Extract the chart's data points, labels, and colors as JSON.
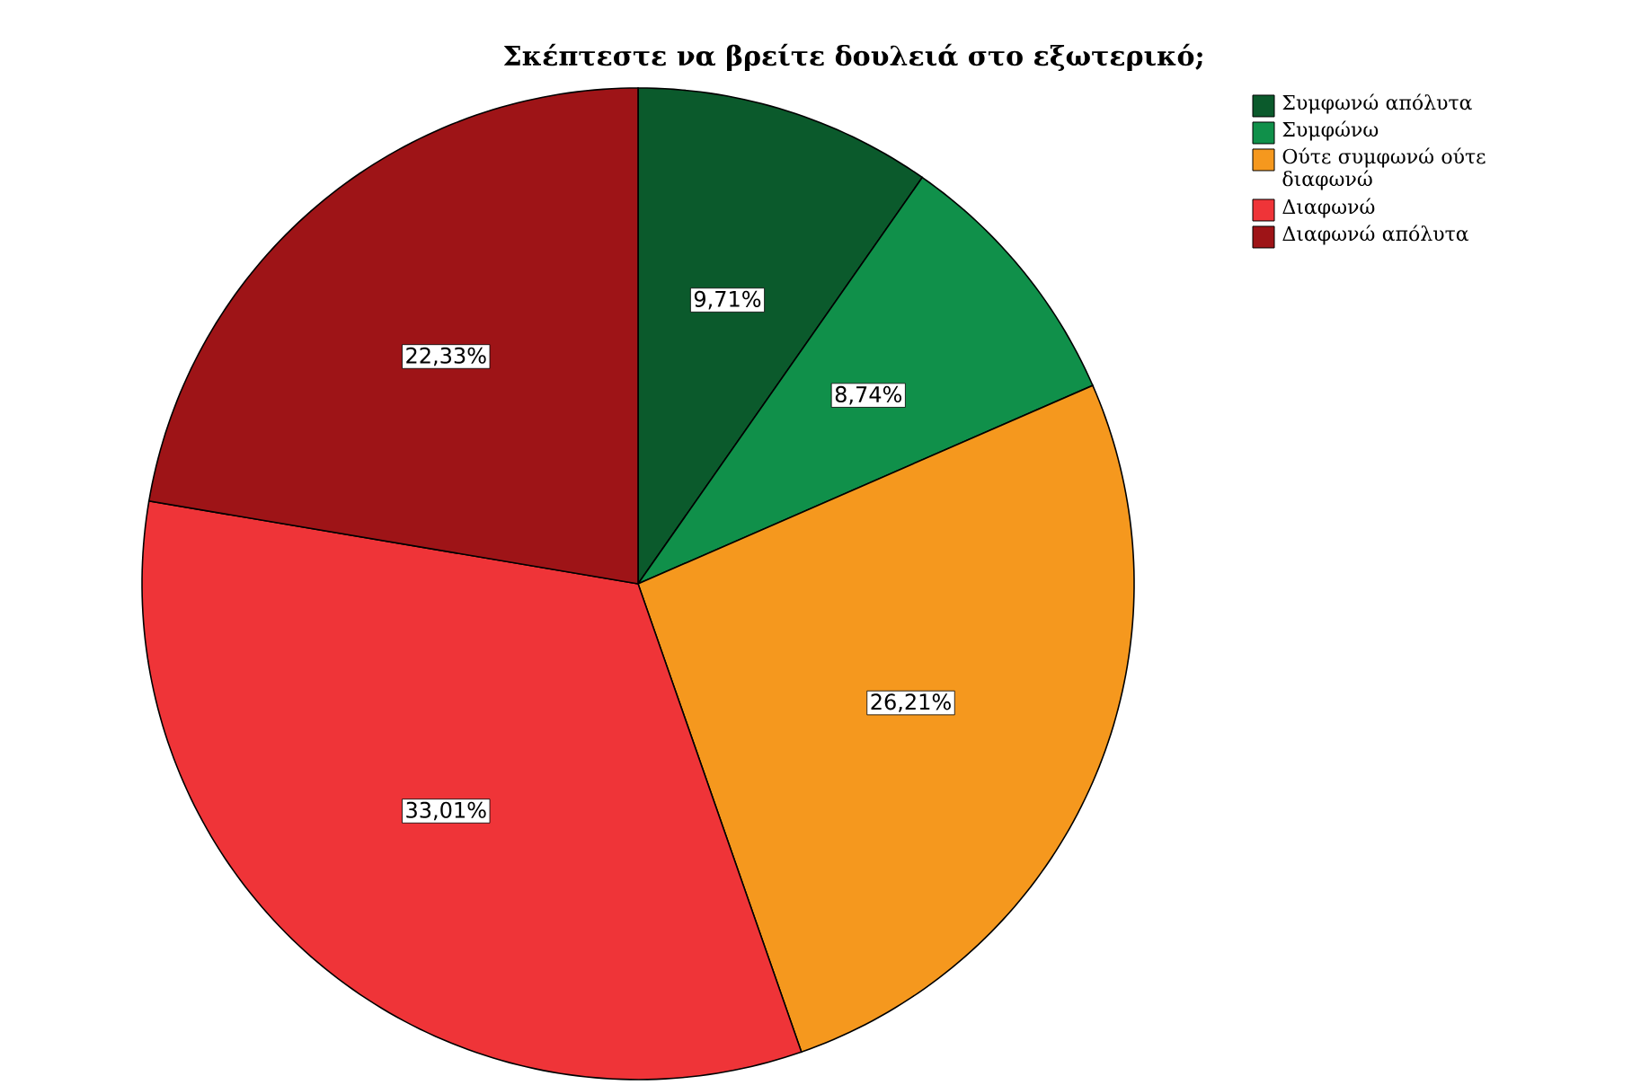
{
  "chart_data": {
    "type": "pie",
    "title": "Σκέπτεστε να βρείτε δουλειά στο εξωτερικό;",
    "categories": [
      "Συμφωνώ απόλυτα",
      "Συμφώνω",
      "Ούτε συμφωνώ ούτε διαφωνώ",
      "Διαφωνώ",
      "Διαφωνώ απόλυτα"
    ],
    "values": [
      9.71,
      8.74,
      26.21,
      33.01,
      22.33
    ],
    "value_labels": [
      "9,71%",
      "8,74%",
      "26,21%",
      "33,01%",
      "22,33%"
    ],
    "colors": [
      "#0b5a2c",
      "#10904a",
      "#f5981e",
      "#ef3438",
      "#9e1417"
    ],
    "legend": "top right"
  }
}
